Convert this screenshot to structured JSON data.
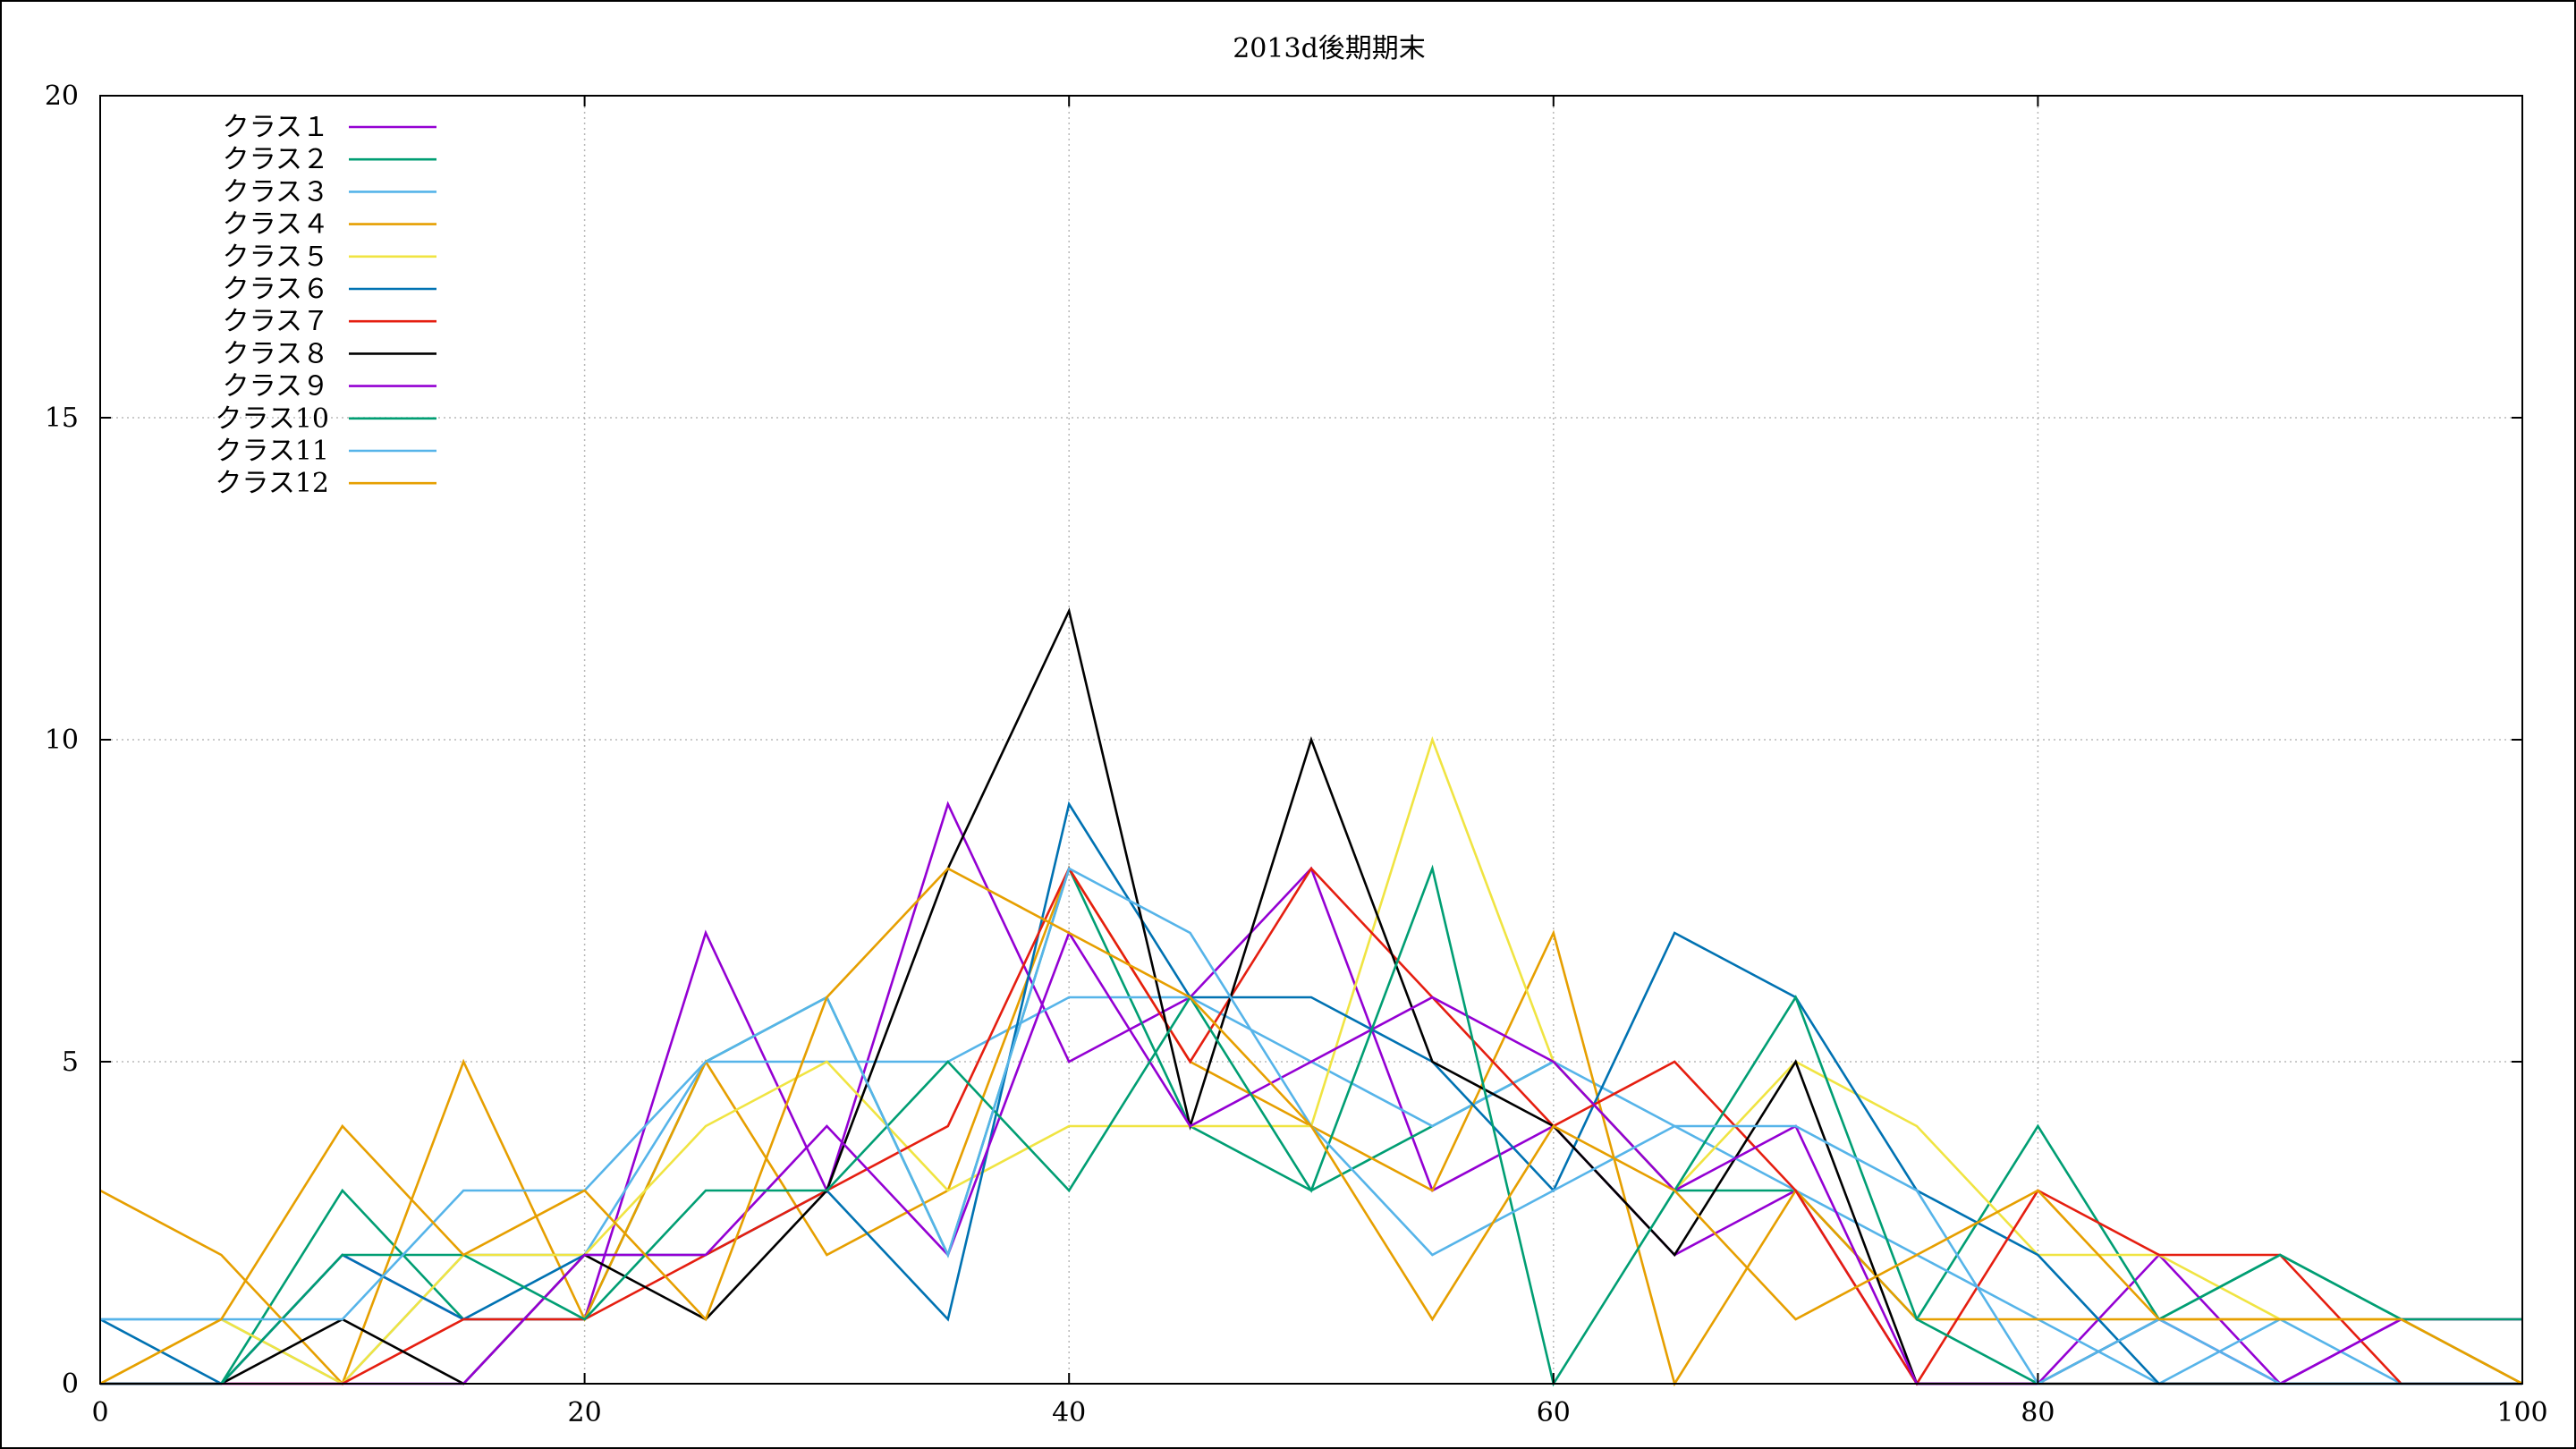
{
  "chart_data": {
    "type": "line",
    "title": "2013d後期期末",
    "xlabel": "",
    "ylabel": "",
    "xlim": [
      0,
      100
    ],
    "ylim": [
      0,
      20
    ],
    "x_ticks": [
      "0",
      "20",
      "40",
      "60",
      "80",
      "100"
    ],
    "y_ticks": [
      "0",
      "5",
      "10",
      "15",
      "20"
    ],
    "grid": true,
    "legend_position": "top-left",
    "x": [
      0,
      5,
      10,
      15,
      20,
      25,
      30,
      35,
      40,
      45,
      50,
      55,
      60,
      65,
      70,
      75,
      80,
      85,
      90,
      95,
      100
    ],
    "series": [
      {
        "name": "クラス１",
        "color": "#9400d3",
        "values": [
          0,
          0,
          2,
          1,
          1,
          7,
          3,
          9,
          5,
          6,
          8,
          3,
          4,
          2,
          3,
          0,
          0,
          2,
          0,
          1,
          1
        ]
      },
      {
        "name": "クラス２",
        "color": "#009e73",
        "values": [
          0,
          0,
          3,
          1,
          1,
          5,
          6,
          2,
          8,
          4,
          3,
          4,
          5,
          3,
          3,
          1,
          4,
          1,
          2,
          1,
          0
        ]
      },
      {
        "name": "クラス３",
        "color": "#56b4e9",
        "values": [
          1,
          1,
          0,
          2,
          2,
          5,
          5,
          5,
          6,
          6,
          5,
          4,
          5,
          4,
          3,
          2,
          1,
          0,
          1,
          0,
          0
        ]
      },
      {
        "name": "クラス４",
        "color": "#e69f00",
        "values": [
          3,
          2,
          0,
          5,
          1,
          5,
          2,
          3,
          8,
          5,
          4,
          3,
          7,
          0,
          3,
          1,
          1,
          1,
          1,
          1,
          0
        ]
      },
      {
        "name": "クラス５",
        "color": "#f0e442",
        "values": [
          0,
          1,
          0,
          2,
          2,
          4,
          5,
          3,
          4,
          4,
          4,
          10,
          5,
          3,
          5,
          4,
          2,
          2,
          1,
          1,
          1
        ]
      },
      {
        "name": "クラス６",
        "color": "#0072b2",
        "values": [
          1,
          0,
          2,
          1,
          2,
          2,
          3,
          1,
          9,
          6,
          6,
          5,
          3,
          7,
          6,
          3,
          2,
          0,
          0,
          0,
          0
        ]
      },
      {
        "name": "クラス７",
        "color": "#e51e10",
        "values": [
          0,
          0,
          0,
          1,
          1,
          2,
          3,
          4,
          8,
          5,
          8,
          6,
          4,
          5,
          3,
          0,
          3,
          2,
          2,
          0,
          0
        ]
      },
      {
        "name": "クラス８",
        "color": "#000000",
        "values": [
          0,
          0,
          1,
          0,
          2,
          1,
          3,
          8,
          12,
          4,
          10,
          5,
          4,
          2,
          5,
          0,
          0,
          0,
          0,
          0,
          0
        ]
      },
      {
        "name": "クラス９",
        "color": "#9400d3",
        "values": [
          0,
          0,
          0,
          0,
          2,
          2,
          4,
          2,
          7,
          4,
          5,
          6,
          5,
          3,
          4,
          0,
          0,
          1,
          0,
          1,
          1
        ]
      },
      {
        "name": "クラス10",
        "color": "#009e73",
        "values": [
          0,
          0,
          2,
          2,
          1,
          3,
          3,
          5,
          3,
          6,
          3,
          8,
          0,
          3,
          6,
          1,
          0,
          1,
          2,
          1,
          1
        ]
      },
      {
        "name": "クラス11",
        "color": "#56b4e9",
        "values": [
          1,
          1,
          1,
          3,
          3,
          5,
          6,
          2,
          8,
          7,
          4,
          2,
          3,
          4,
          4,
          3,
          0,
          1,
          0,
          0,
          0
        ]
      },
      {
        "name": "クラス12",
        "color": "#e69f00",
        "values": [
          0,
          1,
          4,
          2,
          3,
          1,
          6,
          8,
          7,
          6,
          4,
          1,
          4,
          3,
          1,
          2,
          3,
          1,
          1,
          1,
          0
        ]
      }
    ]
  }
}
